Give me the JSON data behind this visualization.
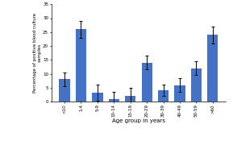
{
  "categories": [
    "<10",
    "1-4",
    "5-9",
    "10-14",
    "15-19",
    "20-29",
    "30-39",
    "40-49",
    "50-59",
    ">60"
  ],
  "values": [
    8,
    26,
    3.2,
    1.0,
    2.1,
    14,
    4.0,
    5.9,
    12,
    24
  ],
  "errors": [
    2.5,
    3.0,
    2.8,
    2.5,
    2.8,
    2.5,
    2.0,
    2.5,
    2.5,
    3.0
  ],
  "bar_color": "#4472C4",
  "ylabel": "Percentage of positive blood culture\nsamples",
  "xlabel": "Age group in years",
  "ylim": [
    0,
    35
  ],
  "yticks": [
    0,
    5,
    10,
    15,
    20,
    25,
    30,
    35
  ],
  "bar_width": 0.65,
  "figsize": [
    2.89,
    1.75
  ],
  "dpi": 100
}
